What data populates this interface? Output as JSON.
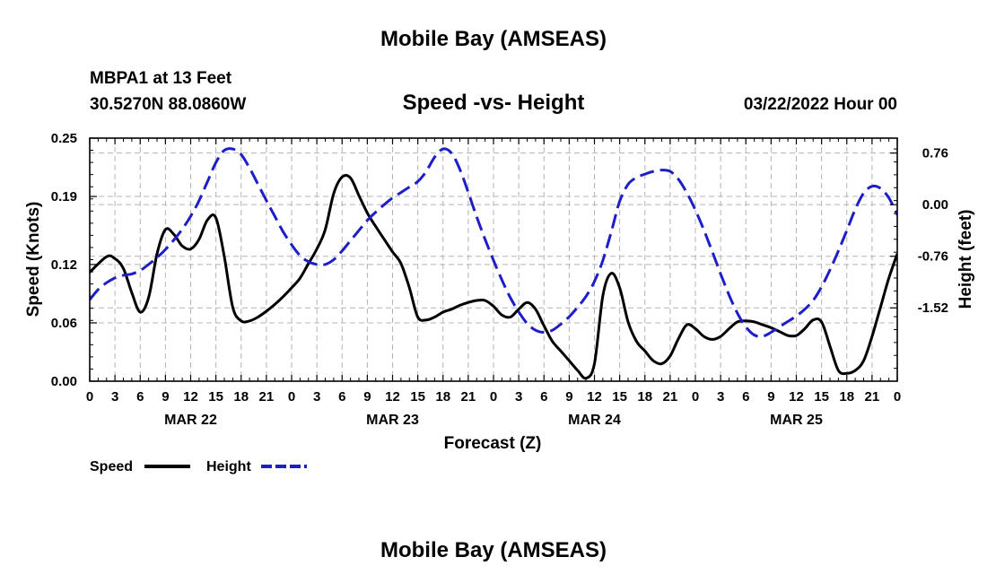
{
  "header": {
    "title": "Mobile Bay (AMSEAS)",
    "station": "MBPA1 at 13 Feet",
    "coords": "30.5270N  88.0860W",
    "subtitle": "Speed -vs- Height",
    "datetime": "03/22/2022 Hour 00"
  },
  "footer": {
    "title": "Mobile Bay (AMSEAS)"
  },
  "chart_data": {
    "type": "line",
    "title": "Speed -vs- Height",
    "xlabel": "Forecast (Z)",
    "ylabel": "Speed (Knots)",
    "y2label": "Height (feet)",
    "x_unit": "hours since 03/22/2022 00Z",
    "xlim": [
      0,
      96
    ],
    "ylim": [
      0,
      0.25
    ],
    "y2lim": [
      -2.6,
      0.98
    ],
    "x_tick_labels": [
      "0",
      "3",
      "6",
      "9",
      "12",
      "15",
      "18",
      "21",
      "0",
      "3",
      "6",
      "9",
      "12",
      "15",
      "18",
      "21",
      "0",
      "3",
      "6",
      "9",
      "12",
      "15",
      "18",
      "21",
      "0",
      "3",
      "6",
      "9",
      "12",
      "15",
      "18",
      "21",
      "0"
    ],
    "day_labels": [
      {
        "label": "MAR 22",
        "x": 12
      },
      {
        "label": "MAR 23",
        "x": 36
      },
      {
        "label": "MAR 24",
        "x": 60
      },
      {
        "label": "MAR 25",
        "x": 84
      }
    ],
    "y_ticks": [
      0.0,
      0.06,
      0.12,
      0.19,
      0.25
    ],
    "y_tick_labels": [
      "0.00",
      "0.06",
      "0.12",
      "0.19",
      "0.25"
    ],
    "y2_ticks": [
      -1.52,
      -0.76,
      0.0,
      0.76
    ],
    "y2_tick_labels": [
      "-1.52",
      "-0.76",
      "0.00",
      "0.76"
    ],
    "grid": true,
    "legend_position": "bottom-left",
    "series": [
      {
        "name": "Speed",
        "axis": "left",
        "color": "#000000",
        "dash": "solid",
        "x": [
          0,
          2,
          3,
          4,
          5,
          6,
          7,
          8,
          9,
          10,
          11,
          12,
          13,
          14,
          15,
          16,
          17,
          18,
          19,
          20,
          21,
          22,
          23,
          24,
          25,
          26,
          27,
          28,
          29,
          30,
          31,
          32,
          33,
          34,
          35,
          36,
          37,
          38,
          39,
          40,
          41,
          42,
          43,
          44,
          45,
          46,
          47,
          48,
          49,
          50,
          51,
          52,
          53,
          54,
          55,
          56,
          57,
          58,
          59,
          60,
          61,
          62,
          63,
          64,
          65,
          66,
          67,
          68,
          69,
          70,
          71,
          72,
          73,
          74,
          75,
          76,
          77,
          78,
          79,
          80,
          81,
          82,
          83,
          84,
          85,
          86,
          87,
          88,
          89,
          90,
          91,
          92,
          93,
          94,
          95,
          96
        ],
        "y": [
          0.112,
          0.128,
          0.126,
          0.116,
          0.091,
          0.071,
          0.086,
          0.131,
          0.156,
          0.151,
          0.139,
          0.136,
          0.146,
          0.166,
          0.168,
          0.128,
          0.076,
          0.062,
          0.062,
          0.066,
          0.072,
          0.079,
          0.087,
          0.096,
          0.106,
          0.121,
          0.136,
          0.156,
          0.193,
          0.21,
          0.209,
          0.191,
          0.173,
          0.159,
          0.146,
          0.133,
          0.121,
          0.096,
          0.066,
          0.063,
          0.066,
          0.071,
          0.074,
          0.078,
          0.081,
          0.083,
          0.083,
          0.077,
          0.068,
          0.066,
          0.074,
          0.081,
          0.074,
          0.057,
          0.041,
          0.031,
          0.021,
          0.011,
          0.003,
          0.018,
          0.088,
          0.111,
          0.096,
          0.061,
          0.041,
          0.031,
          0.021,
          0.018,
          0.026,
          0.044,
          0.058,
          0.054,
          0.046,
          0.043,
          0.046,
          0.054,
          0.061,
          0.062,
          0.061,
          0.058,
          0.055,
          0.051,
          0.047,
          0.047,
          0.054,
          0.063,
          0.061,
          0.036,
          0.011,
          0.008,
          0.011,
          0.021,
          0.046,
          0.076,
          0.106,
          0.131
        ]
      },
      {
        "name": "Height",
        "axis": "right",
        "color": "#1e1ec8",
        "dash": "dashed",
        "x": [
          0,
          1,
          2,
          3,
          4,
          5,
          6,
          7,
          8,
          9,
          10,
          11,
          12,
          13,
          14,
          15,
          16,
          17,
          18,
          19,
          20,
          21,
          22,
          23,
          24,
          25,
          26,
          27,
          28,
          29,
          30,
          31,
          32,
          33,
          34,
          35,
          36,
          37,
          38,
          39,
          40,
          41,
          42,
          43,
          44,
          45,
          46,
          47,
          48,
          49,
          50,
          51,
          52,
          53,
          54,
          55,
          56,
          57,
          58,
          59,
          60,
          61,
          62,
          63,
          64,
          65,
          66,
          67,
          68,
          69,
          70,
          71,
          72,
          73,
          74,
          75,
          76,
          77,
          78,
          79,
          80,
          81,
          82,
          83,
          84,
          85,
          86,
          87,
          88,
          89,
          90,
          91,
          92,
          93,
          94,
          95,
          96
        ],
        "y": [
          -1.4,
          -1.25,
          -1.15,
          -1.08,
          -1.04,
          -1.02,
          -0.97,
          -0.88,
          -0.78,
          -0.66,
          -0.52,
          -0.36,
          -0.17,
          0.06,
          0.34,
          0.62,
          0.8,
          0.82,
          0.74,
          0.54,
          0.3,
          0.06,
          -0.17,
          -0.4,
          -0.59,
          -0.75,
          -0.84,
          -0.88,
          -0.88,
          -0.81,
          -0.68,
          -0.53,
          -0.38,
          -0.23,
          -0.11,
          -0.0,
          0.1,
          0.18,
          0.26,
          0.34,
          0.49,
          0.7,
          0.82,
          0.76,
          0.52,
          0.18,
          -0.18,
          -0.51,
          -0.82,
          -1.11,
          -1.37,
          -1.58,
          -1.75,
          -1.85,
          -1.88,
          -1.85,
          -1.76,
          -1.65,
          -1.51,
          -1.35,
          -1.13,
          -0.82,
          -0.4,
          0.05,
          0.3,
          0.4,
          0.45,
          0.49,
          0.51,
          0.49,
          0.37,
          0.17,
          -0.08,
          -0.37,
          -0.69,
          -1.02,
          -1.33,
          -1.6,
          -1.8,
          -1.92,
          -1.94,
          -1.88,
          -1.8,
          -1.72,
          -1.64,
          -1.54,
          -1.41,
          -1.21,
          -0.96,
          -0.68,
          -0.38,
          -0.07,
          0.17,
          0.27,
          0.24,
          0.1,
          -0.15
        ]
      }
    ]
  }
}
